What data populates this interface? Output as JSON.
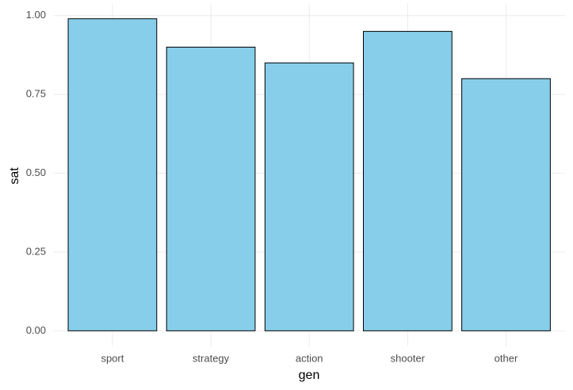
{
  "chart_data": {
    "type": "bar",
    "x_label": "gen",
    "y_label": "sat",
    "categories": [
      "sport",
      "strategy",
      "action",
      "shooter",
      "other"
    ],
    "values": [
      0.99,
      0.9,
      0.85,
      0.95,
      0.8
    ],
    "color": "#87ceeb",
    "edge_color": "#000000",
    "ylim": [
      -0.0495,
      1.0395
    ],
    "yticks": [
      {
        "value": 0,
        "label": "0.00"
      },
      {
        "value": 0.25,
        "label": "0.25"
      },
      {
        "value": 0.5,
        "label": "0.50"
      },
      {
        "value": 0.75,
        "label": "0.75"
      },
      {
        "value": 1,
        "label": "1.00"
      }
    ],
    "grid": true
  }
}
